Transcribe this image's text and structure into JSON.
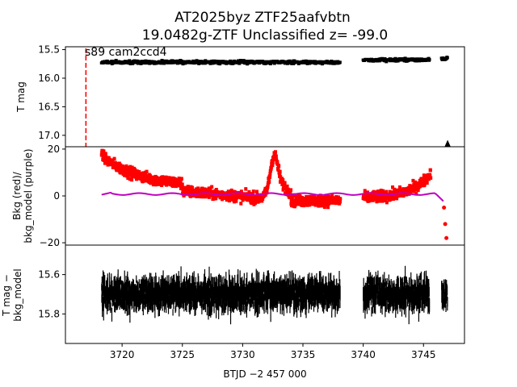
{
  "title_line1": "AT2025byz  ZTF25aafvbtn",
  "title_line2": "19.0482g-ZTF Unclassified z= -99.0",
  "sector_label": "s89 cam2ccd4",
  "chart_data": [
    {
      "type": "scatter",
      "panel": "top",
      "ylabel": "T mag",
      "ylim": [
        17.2,
        15.45
      ],
      "yticks": [
        15.5,
        16.0,
        16.5,
        17.0
      ],
      "ytick_labels": [
        "15.5",
        "16.0",
        "16.5",
        "17.0"
      ],
      "series": [
        {
          "color": "#000000",
          "segments": [
            [
              3718.3,
              3738.1,
              15.72,
              0.05
            ],
            [
              3740.0,
              3745.5,
              15.68,
              0.05
            ],
            [
              3746.5,
              3747.0,
              15.66,
              0.05
            ]
          ]
        }
      ],
      "marker_triangle": {
        "x": 3747.0,
        "y": 17.15
      },
      "vline": {
        "x": 3717.0,
        "color": "#ff0000",
        "style": "dashed"
      }
    },
    {
      "type": "scatter",
      "panel": "middle",
      "ylabel": "Bkg (red)/\nbkg_model (purple)",
      "ylim": [
        -21,
        21
      ],
      "yticks": [
        -20,
        0,
        20
      ],
      "ytick_labels": [
        "−20",
        "0",
        "20"
      ],
      "series": [
        {
          "name": "Bkg",
          "color": "#ff0000"
        },
        {
          "name": "bkg_model",
          "color": "#bf00bf"
        }
      ]
    },
    {
      "type": "scatter",
      "panel": "bottom",
      "ylabel": "T mag −\nbkg_model",
      "ylim": [
        15.95,
        15.45
      ],
      "yticks": [
        15.6,
        15.8
      ],
      "ytick_labels": [
        "15.6",
        "15.8"
      ],
      "series": [
        {
          "color": "#000000",
          "center": 15.7
        }
      ]
    }
  ],
  "x_axis": {
    "label": "BTJD −2 457 000",
    "xlim": [
      3715.3,
      3748.4
    ],
    "xticks": [
      3720,
      3725,
      3730,
      3735,
      3740,
      3745
    ],
    "xtick_labels": [
      "3720",
      "3725",
      "3730",
      "3735",
      "3740",
      "3745"
    ]
  }
}
